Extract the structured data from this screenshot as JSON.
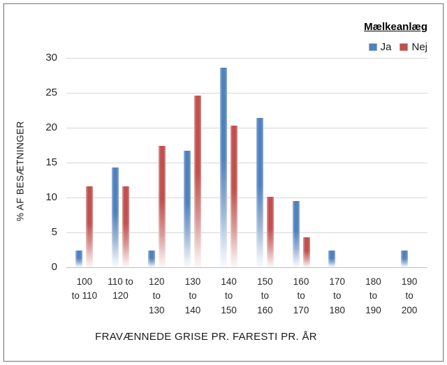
{
  "legend": {
    "title": "Mælkeanlæg",
    "items": [
      {
        "label": "Ja",
        "color": "#4f81bd"
      },
      {
        "label": "Nej",
        "color": "#c0504d"
      }
    ]
  },
  "y_axis": {
    "title": "% AF BESÆTNINGER",
    "ticks": [
      "30",
      "25",
      "20",
      "15",
      "10",
      "5",
      "0"
    ]
  },
  "x_axis": {
    "title": "FRAVÆNNEDE GRISE PR. FARESTI PR. ÅR"
  },
  "chart_data": {
    "type": "bar",
    "title": "",
    "categories": [
      "100 to 110",
      "110 to 120",
      "120 to 130",
      "130 to 140",
      "140 to 150",
      "150 to 160",
      "160 to 170",
      "170 to 180",
      "180 to 190",
      "190 to 200"
    ],
    "category_label_lines": [
      [
        "100",
        "to 110"
      ],
      [
        "110 to",
        "120"
      ],
      [
        "120",
        "to",
        "130"
      ],
      [
        "130",
        "to",
        "140"
      ],
      [
        "140",
        "to",
        "150"
      ],
      [
        "150",
        "to",
        "160"
      ],
      [
        "160",
        "to",
        "170"
      ],
      [
        "170",
        "to",
        "180"
      ],
      [
        "180",
        "to",
        "190"
      ],
      [
        "190",
        "to",
        "200"
      ]
    ],
    "series": [
      {
        "name": "Ja",
        "color": "#4f81bd",
        "values": [
          2.4,
          14.3,
          2.4,
          16.7,
          28.6,
          21.4,
          9.5,
          2.4,
          0,
          2.4
        ]
      },
      {
        "name": "Nej",
        "color": "#c0504d",
        "values": [
          11.6,
          11.6,
          17.4,
          24.6,
          20.3,
          10.1,
          4.3,
          0,
          0,
          0
        ]
      }
    ],
    "xlabel": "FRAVÆNNEDE GRISE PR. FARESTI PR. ÅR",
    "ylabel": "% AF BESÆTNINGER",
    "ylim": [
      0,
      30
    ],
    "yticks": [
      0,
      5,
      10,
      15,
      20,
      25,
      30
    ],
    "grid": "horizontal",
    "legend_title": "Mælkeanlæg",
    "legend_position": "top-right"
  }
}
